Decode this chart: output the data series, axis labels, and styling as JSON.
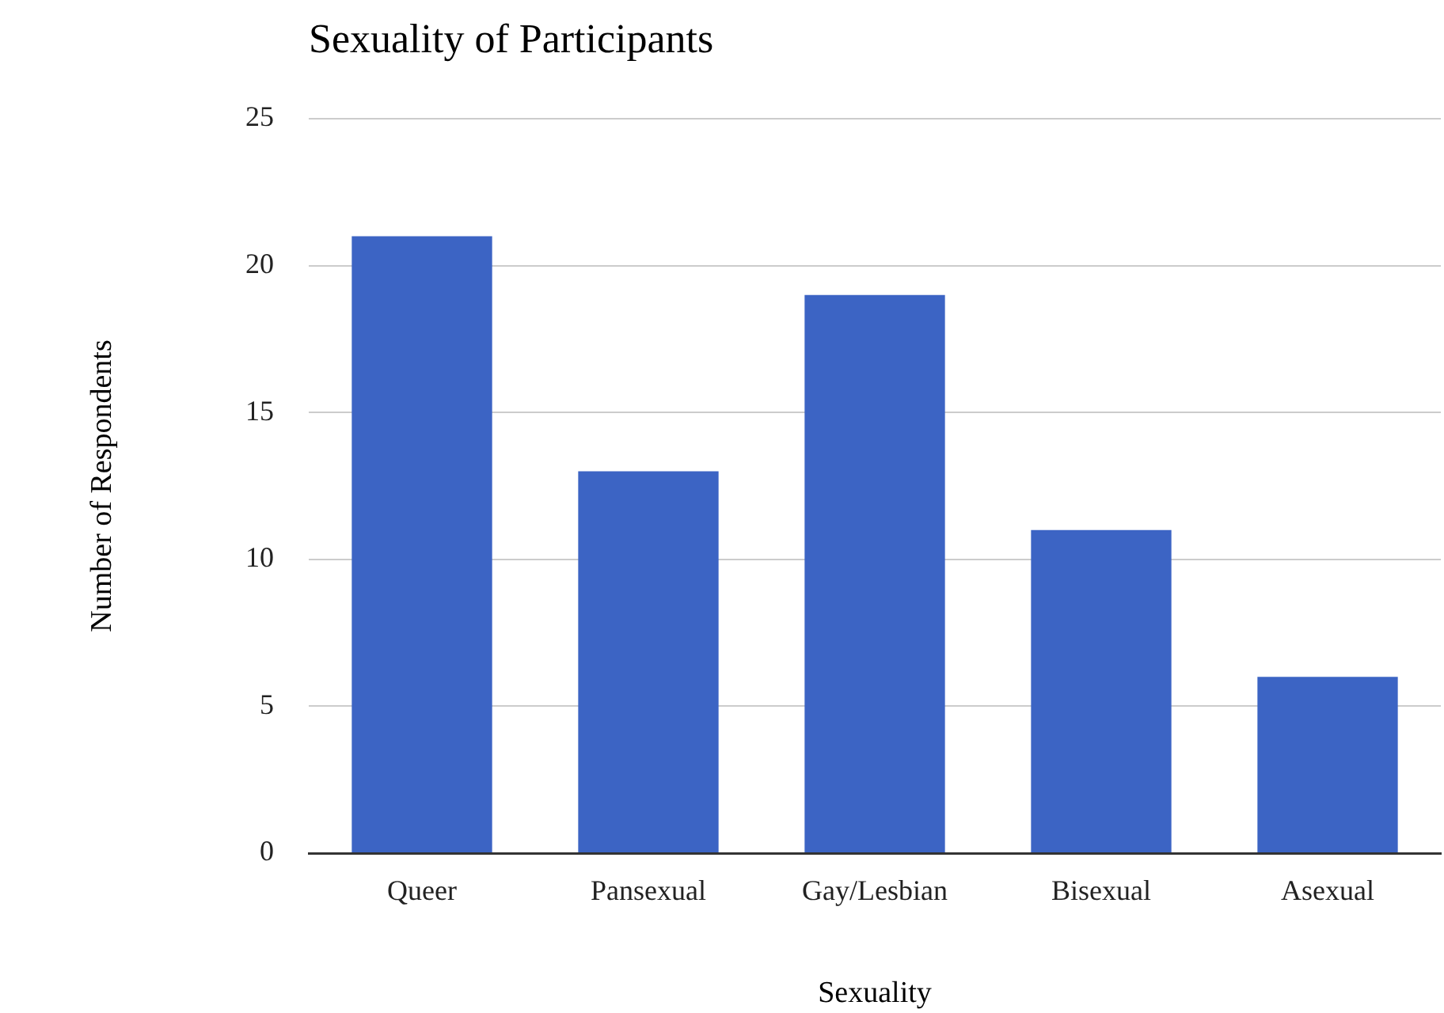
{
  "chart_data": {
    "type": "bar",
    "title": "Sexuality of Participants",
    "xlabel": "Sexuality",
    "ylabel": "Number of Respondents",
    "categories": [
      "Queer",
      "Pansexual",
      "Gay/Lesbian",
      "Bisexual",
      "Asexual"
    ],
    "values": [
      21,
      13,
      19,
      11,
      6
    ],
    "color": "#3c64c4",
    "ylim": [
      0,
      25
    ],
    "yticks": [
      0,
      5,
      10,
      15,
      20,
      25
    ],
    "grid": "y",
    "legend": false
  }
}
